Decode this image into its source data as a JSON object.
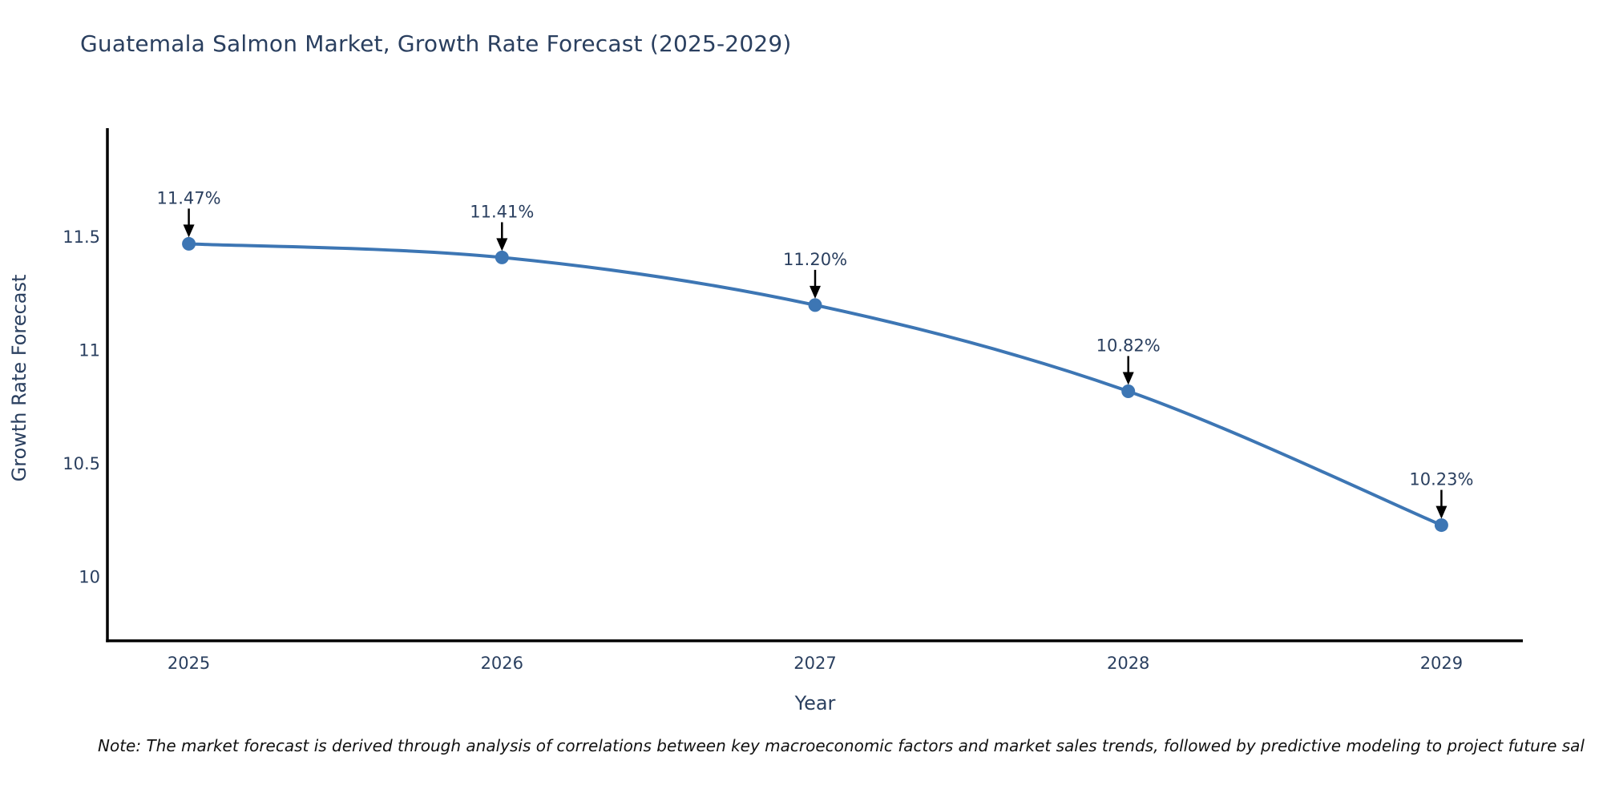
{
  "title": "Guatemala Salmon Market, Growth Rate Forecast (2025-2029)",
  "note": "Note: The market forecast is derived through analysis of correlations between key macroeconomic factors and market sales trends, followed by predictive modeling to project future sal",
  "chart_data": {
    "type": "line",
    "title": "Guatemala Salmon Market, Growth Rate Forecast (2025-2029)",
    "xlabel": "Year",
    "ylabel": "Growth Rate Forecast",
    "x": [
      2025,
      2026,
      2027,
      2028,
      2029
    ],
    "series": [
      {
        "name": "Growth Rate Forecast",
        "values": [
          11.47,
          11.41,
          11.2,
          10.82,
          10.23
        ]
      }
    ],
    "point_labels": [
      "11.47%",
      "11.41%",
      "11.20%",
      "10.82%",
      "10.23%"
    ],
    "x_tick_labels": [
      "2025",
      "2026",
      "2027",
      "2028",
      "2029"
    ],
    "y_ticks": [
      10,
      10.5,
      11,
      11.5
    ],
    "y_tick_labels": [
      "10",
      "10.5",
      "11",
      "11.5"
    ],
    "xlim": [
      2024.74,
      2029.26
    ],
    "ylim": [
      9.72,
      11.98
    ],
    "grid": false,
    "legend_position": "none",
    "line_shape": "spline",
    "annotations_have_arrows": true,
    "colors": {
      "line": "#3d76b4",
      "marker": "#3d76b4",
      "axis": "#000000",
      "text": "#2a3f5f",
      "annotation_text": "#2a3f5f",
      "annotation_arrow": "#000000",
      "note_text": "#111111",
      "background": "#ffffff"
    }
  }
}
